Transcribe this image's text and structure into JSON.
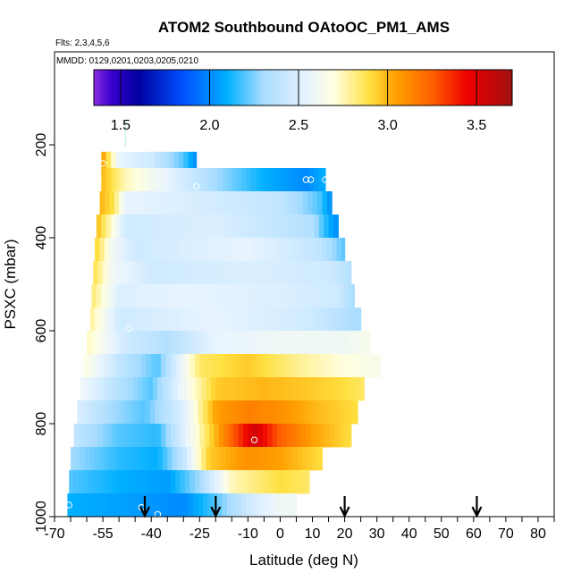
{
  "chart_data": {
    "type": "heatmap",
    "title": "ATOM2 Southbound OAtoOC_PM1_AMS",
    "subtitle_flights": "Flts: 2,3,4,5,6",
    "subtitle_dates": "MMDD: 0129,0201,0203,0205,0210",
    "xlabel": "Latitude (deg N)",
    "ylabel": "PSXC (mbar)",
    "xlim": [
      -70,
      85
    ],
    "ylim": [
      1000,
      0
    ],
    "x_ticks": [
      -70,
      -55,
      -40,
      -25,
      -10,
      0,
      10,
      20,
      30,
      40,
      50,
      60,
      70,
      80
    ],
    "y_ticks": [
      200,
      400,
      600,
      800,
      1000
    ],
    "colorbar": {
      "min": 1.35,
      "max": 3.7,
      "ticks": [
        1.5,
        2.0,
        2.5,
        3.0,
        3.5
      ],
      "tick_labels": [
        "1.5",
        "2.0",
        "2.5",
        "3.0",
        "3.5"
      ],
      "stops": [
        {
          "v": 1.35,
          "c": "#8a2be2"
        },
        {
          "v": 1.45,
          "c": "#3a00d0"
        },
        {
          "v": 1.6,
          "c": "#0000a0"
        },
        {
          "v": 1.85,
          "c": "#0050ff"
        },
        {
          "v": 2.1,
          "c": "#00b0ff"
        },
        {
          "v": 2.3,
          "c": "#a8dcff"
        },
        {
          "v": 2.55,
          "c": "#e8f4ff"
        },
        {
          "v": 2.7,
          "c": "#ffffe0"
        },
        {
          "v": 2.9,
          "c": "#ffe040"
        },
        {
          "v": 3.05,
          "c": "#ffa000"
        },
        {
          "v": 3.25,
          "c": "#ff6000"
        },
        {
          "v": 3.45,
          "c": "#ee0000"
        },
        {
          "v": 3.7,
          "c": "#a01010"
        }
      ]
    },
    "rows": [
      {
        "p": 240,
        "lat_min": -55.5,
        "lat_max": -26,
        "values": [
          [
            -55.5,
            3.1
          ],
          [
            -50,
            2.55
          ],
          [
            -40,
            2.45
          ],
          [
            -30,
            2.2
          ],
          [
            -26,
            2.0
          ]
        ]
      },
      {
        "p": 275,
        "lat_min": -55.5,
        "lat_max": 14,
        "values": [
          [
            -55.5,
            3.0
          ],
          [
            -48,
            2.75
          ],
          [
            -35,
            2.55
          ],
          [
            -20,
            2.3
          ],
          [
            -5,
            2.1
          ],
          [
            8,
            2.0
          ],
          [
            14,
            2.1
          ]
        ]
      },
      {
        "p": 325,
        "lat_min": -56,
        "lat_max": 16,
        "values": [
          [
            -56,
            3.0
          ],
          [
            -52,
            2.9
          ],
          [
            -48,
            2.55
          ],
          [
            -30,
            2.5
          ],
          [
            0,
            2.4
          ],
          [
            12,
            2.2
          ],
          [
            16,
            2.0
          ]
        ]
      },
      {
        "p": 375,
        "lat_min": -57,
        "lat_max": 18,
        "values": [
          [
            -57,
            3.0
          ],
          [
            -52,
            2.7
          ],
          [
            -48,
            2.45
          ],
          [
            -20,
            2.5
          ],
          [
            10,
            2.35
          ],
          [
            15,
            2.1
          ],
          [
            18,
            2.0
          ]
        ]
      },
      {
        "p": 425,
        "lat_min": -57.5,
        "lat_max": 20,
        "values": [
          [
            -57.5,
            2.95
          ],
          [
            -52,
            2.6
          ],
          [
            -45,
            2.45
          ],
          [
            -10,
            2.55
          ],
          [
            12,
            2.4
          ],
          [
            20,
            2.2
          ]
        ]
      },
      {
        "p": 475,
        "lat_min": -58,
        "lat_max": 22,
        "values": [
          [
            -58,
            2.9
          ],
          [
            -52,
            2.6
          ],
          [
            -40,
            2.45
          ],
          [
            -10,
            2.5
          ],
          [
            15,
            2.45
          ],
          [
            22,
            2.35
          ]
        ]
      },
      {
        "p": 525,
        "lat_min": -58.5,
        "lat_max": 23,
        "values": [
          [
            -58.5,
            2.85
          ],
          [
            -50,
            2.5
          ],
          [
            -30,
            2.55
          ],
          [
            0,
            2.5
          ],
          [
            18,
            2.45
          ],
          [
            23,
            2.3
          ]
        ]
      },
      {
        "p": 575,
        "lat_min": -59,
        "lat_max": 25,
        "values": [
          [
            -59,
            2.8
          ],
          [
            -50,
            2.45
          ],
          [
            -20,
            2.55
          ],
          [
            10,
            2.45
          ],
          [
            25,
            2.3
          ]
        ]
      },
      {
        "p": 625,
        "lat_min": -60,
        "lat_max": 28,
        "values": [
          [
            -60,
            2.75
          ],
          [
            -48,
            2.45
          ],
          [
            -35,
            2.35
          ],
          [
            -20,
            2.55
          ],
          [
            0,
            2.6
          ],
          [
            20,
            2.6
          ],
          [
            28,
            2.65
          ]
        ]
      },
      {
        "p": 675,
        "lat_min": -61,
        "lat_max": 31,
        "values": [
          [
            -61,
            2.7
          ],
          [
            -50,
            2.4
          ],
          [
            -38,
            2.2
          ],
          [
            -32,
            2.5
          ],
          [
            -25,
            2.85
          ],
          [
            -10,
            2.95
          ],
          [
            5,
            2.8
          ],
          [
            20,
            2.7
          ],
          [
            31,
            2.65
          ]
        ]
      },
      {
        "p": 725,
        "lat_min": -62,
        "lat_max": 26,
        "values": [
          [
            -62,
            2.6
          ],
          [
            -50,
            2.35
          ],
          [
            -40,
            2.2
          ],
          [
            -30,
            2.6
          ],
          [
            -20,
            2.95
          ],
          [
            -5,
            3.0
          ],
          [
            10,
            2.95
          ],
          [
            20,
            2.9
          ],
          [
            26,
            2.85
          ]
        ]
      },
      {
        "p": 775,
        "lat_min": -63,
        "lat_max": 24,
        "values": [
          [
            -63,
            2.5
          ],
          [
            -52,
            2.3
          ],
          [
            -42,
            2.2
          ],
          [
            -30,
            2.5
          ],
          [
            -20,
            3.05
          ],
          [
            -10,
            3.15
          ],
          [
            0,
            3.1
          ],
          [
            10,
            3.0
          ],
          [
            24,
            2.9
          ]
        ]
      },
      {
        "p": 825,
        "lat_min": -64,
        "lat_max": 22,
        "values": [
          [
            -64,
            2.4
          ],
          [
            -50,
            2.2
          ],
          [
            -38,
            2.15
          ],
          [
            -28,
            2.6
          ],
          [
            -18,
            3.1
          ],
          [
            -8,
            3.55
          ],
          [
            0,
            3.25
          ],
          [
            10,
            3.05
          ],
          [
            22,
            2.9
          ]
        ]
      },
      {
        "p": 875,
        "lat_min": -65,
        "lat_max": 13,
        "values": [
          [
            -65,
            2.3
          ],
          [
            -50,
            2.15
          ],
          [
            -38,
            2.1
          ],
          [
            -30,
            2.4
          ],
          [
            -22,
            2.95
          ],
          [
            -10,
            3.1
          ],
          [
            0,
            3.05
          ],
          [
            13,
            2.9
          ]
        ]
      },
      {
        "p": 925,
        "lat_min": -65.5,
        "lat_max": 9,
        "values": [
          [
            -65.5,
            2.2
          ],
          [
            -50,
            2.1
          ],
          [
            -35,
            2.05
          ],
          [
            -25,
            2.3
          ],
          [
            -15,
            2.75
          ],
          [
            0,
            2.9
          ],
          [
            9,
            2.85
          ]
        ]
      },
      {
        "p": 975,
        "lat_min": -66,
        "lat_max": 5,
        "values": [
          [
            -66,
            2.1
          ],
          [
            -45,
            2.05
          ],
          [
            -30,
            2.0
          ],
          [
            -20,
            2.2
          ],
          [
            -10,
            2.45
          ],
          [
            0,
            2.6
          ],
          [
            5,
            2.6
          ]
        ]
      }
    ],
    "circle_markers": [
      {
        "lat": -55,
        "p": 240
      },
      {
        "lat": -26,
        "p": 290
      },
      {
        "lat": 8,
        "p": 275
      },
      {
        "lat": 9.5,
        "p": 275
      },
      {
        "lat": 14,
        "p": 275
      },
      {
        "lat": -47,
        "p": 595
      },
      {
        "lat": 22.5,
        "p": 615
      },
      {
        "lat": -8,
        "p": 835
      },
      {
        "lat": -43,
        "p": 980
      },
      {
        "lat": -38,
        "p": 995
      },
      {
        "lat": -65.5,
        "p": 975
      }
    ],
    "stray_marks": [
      {
        "lat": -48,
        "p_top": 150,
        "p_bottom": 205
      }
    ],
    "arrows": [
      -42,
      -20,
      20,
      61
    ]
  }
}
